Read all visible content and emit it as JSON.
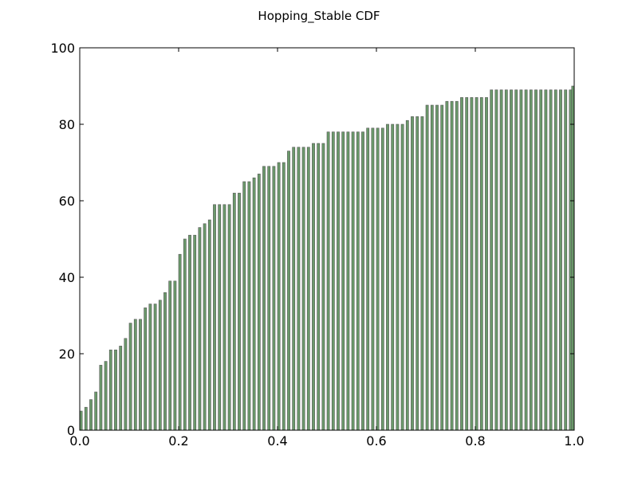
{
  "chart_data": {
    "type": "bar",
    "title": "Hopping_Stable CDF",
    "xlabel": "",
    "ylabel": "",
    "xlim": [
      0.0,
      1.0
    ],
    "ylim": [
      0,
      100
    ],
    "xticks": [
      "0.0",
      "0.2",
      "0.4",
      "0.6",
      "0.8",
      "1.0"
    ],
    "yticks": [
      "0",
      "20",
      "40",
      "60",
      "80",
      "100"
    ],
    "bar_color": "#6b9a6b",
    "bar_edge_color": "#555555",
    "grid": false,
    "x": [
      0.0,
      0.01,
      0.02,
      0.03,
      0.04,
      0.05,
      0.06,
      0.07,
      0.08,
      0.09,
      0.1,
      0.11,
      0.12,
      0.13,
      0.14,
      0.15,
      0.16,
      0.17,
      0.18,
      0.19,
      0.2,
      0.21,
      0.22,
      0.23,
      0.24,
      0.25,
      0.26,
      0.27,
      0.28,
      0.29,
      0.3,
      0.31,
      0.32,
      0.33,
      0.34,
      0.35,
      0.36,
      0.37,
      0.38,
      0.39,
      0.4,
      0.41,
      0.42,
      0.43,
      0.44,
      0.45,
      0.46,
      0.47,
      0.48,
      0.49,
      0.5,
      0.51,
      0.52,
      0.53,
      0.54,
      0.55,
      0.56,
      0.57,
      0.58,
      0.59,
      0.6,
      0.61,
      0.62,
      0.63,
      0.64,
      0.65,
      0.66,
      0.67,
      0.68,
      0.69,
      0.7,
      0.71,
      0.72,
      0.73,
      0.74,
      0.75,
      0.76,
      0.77,
      0.78,
      0.79,
      0.8,
      0.81,
      0.82,
      0.83,
      0.84,
      0.85,
      0.86,
      0.87,
      0.88,
      0.89,
      0.9,
      0.91,
      0.92,
      0.93,
      0.94,
      0.95,
      0.96,
      0.97,
      0.98,
      0.99,
      1.0
    ],
    "values": [
      5,
      6,
      8,
      10,
      17,
      18,
      21,
      21,
      22,
      24,
      28,
      29,
      29,
      32,
      33,
      33,
      34,
      36,
      39,
      39,
      46,
      50,
      51,
      51,
      53,
      54,
      55,
      59,
      59,
      59,
      59,
      62,
      62,
      65,
      65,
      66,
      67,
      69,
      69,
      69,
      70,
      70,
      73,
      74,
      74,
      74,
      74,
      75,
      75,
      75,
      78,
      78,
      78,
      78,
      78,
      78,
      78,
      78,
      79,
      79,
      79,
      79,
      80,
      80,
      80,
      80,
      81,
      82,
      82,
      82,
      85,
      85,
      85,
      85,
      86,
      86,
      86,
      87,
      87,
      87,
      87,
      87,
      87,
      89,
      89,
      89,
      89,
      89,
      89,
      89,
      89,
      89,
      89,
      89,
      89,
      89,
      89,
      89,
      89,
      89,
      90
    ]
  }
}
